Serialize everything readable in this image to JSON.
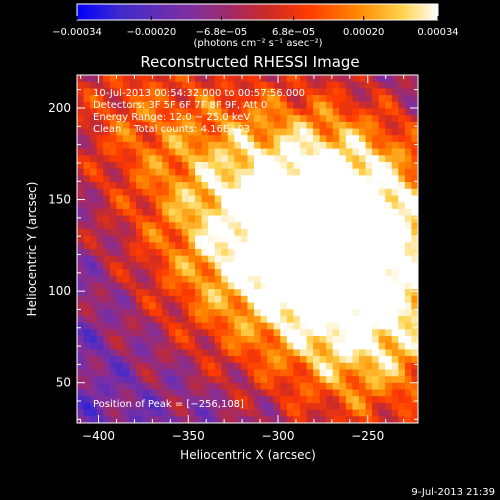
{
  "chart_data": {
    "type": "heatmap",
    "title": "Reconstructed RHESSI Image",
    "xlabel": "Heliocentric X (arcsec)",
    "ylabel": "Heliocentric Y (arcsec)",
    "xlim": [
      -412,
      -222
    ],
    "ylim": [
      28,
      218
    ],
    "x_ticks": [
      -400,
      -350,
      -300,
      -250
    ],
    "y_ticks": [
      50,
      100,
      150,
      200
    ],
    "x_tick_labels": [
      "−400",
      "−350",
      "−300",
      "−250"
    ],
    "y_tick_labels": [
      "50",
      "100",
      "150",
      "200"
    ],
    "peak": [
      -256,
      108
    ],
    "colorbar": {
      "range": [
        -0.00034,
        0.00034
      ],
      "ticks": [
        -0.00034,
        -0.0002,
        -6.8e-05,
        6.8e-05,
        0.0002,
        0.00034
      ],
      "tick_labels": [
        "−0.00034",
        "−0.00020",
        "−6.8e−05",
        "6.8e−05",
        "0.00020",
        "0.00034"
      ],
      "unit_label": "(photons cm⁻² s⁻¹ asec⁻²)",
      "colors": [
        "#0000ff",
        "#3f2acc",
        "#7b2fa5",
        "#a02a6a",
        "#c82b2b",
        "#ff3a00",
        "#ff8a00",
        "#ffd24a",
        "#ffffff"
      ]
    },
    "annotations": [
      "10-Jul-2013 00:54:32.000 to 00:57:56.000",
      "Detectors: 3F 5F 6F 7F 8F 9F, Att 0",
      "Energy Range: 12.0 − 25.0 keV",
      "Clean    Total counts: 4.16E+03",
      "Position of Peak = [−256,108]"
    ]
  },
  "footer": {
    "timestamp": "9-Jul-2013 21:39"
  }
}
